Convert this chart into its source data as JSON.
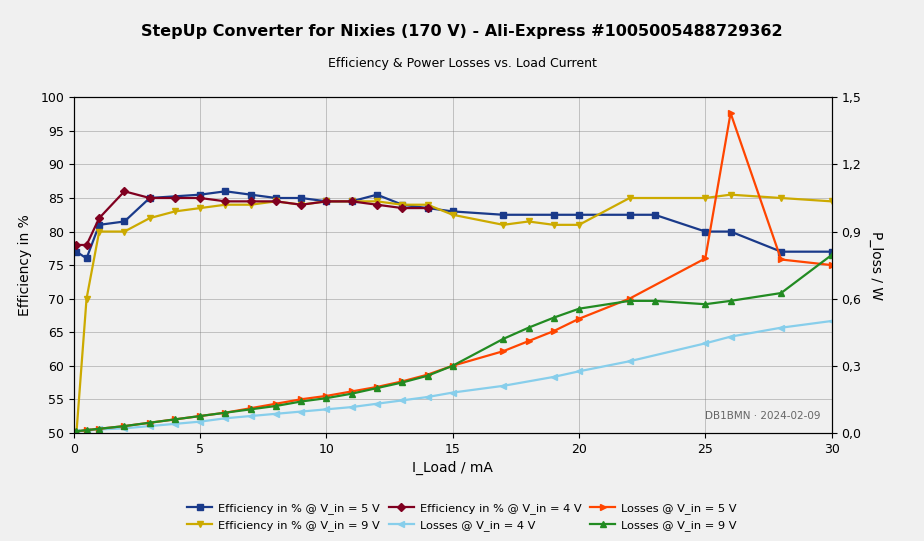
{
  "title": "StepUp Converter for Nixies (170 V) - Ali-Express #1005005488729362",
  "subtitle": "Efficiency & Power Losses vs. Load Current",
  "xlabel": "I_Load / mA",
  "ylabel_left": "Efficiency in %",
  "ylabel_right": "P_loss / W",
  "watermark": "DB1BMN · 2024-02-09",
  "xlim": [
    0,
    30
  ],
  "ylim_left": [
    50,
    100
  ],
  "ylim_right": [
    0.0,
    1.5
  ],
  "xticks": [
    0,
    5,
    10,
    15,
    20,
    25,
    30
  ],
  "yticks_left": [
    50,
    55,
    60,
    65,
    70,
    75,
    80,
    85,
    90,
    95,
    100
  ],
  "yticks_right": [
    0.0,
    0.3,
    0.6,
    0.9,
    1.2,
    1.5
  ],
  "eff_5v_x": [
    0.1,
    0.5,
    1.0,
    2.0,
    3.0,
    5.0,
    6.0,
    7.0,
    8.0,
    9.0,
    10.0,
    11.0,
    12.0,
    13.0,
    14.0,
    15.0,
    17.0,
    19.0,
    20.0,
    22.0,
    23.0,
    25.0,
    26.0,
    28.0,
    30.0
  ],
  "eff_5v_y": [
    77.0,
    76.0,
    81.0,
    81.5,
    85.0,
    85.5,
    86.0,
    85.5,
    85.0,
    85.0,
    84.5,
    84.5,
    85.5,
    84.0,
    83.5,
    83.0,
    82.5,
    82.5,
    82.5,
    82.5,
    82.5,
    80.0,
    80.0,
    77.0,
    77.0
  ],
  "eff_9v_x": [
    0.1,
    0.5,
    1.0,
    2.0,
    3.0,
    4.0,
    5.0,
    6.0,
    7.0,
    8.0,
    9.0,
    10.0,
    11.0,
    12.0,
    13.0,
    14.0,
    15.0,
    17.0,
    18.0,
    19.0,
    20.0,
    22.0,
    25.0,
    26.0,
    28.0,
    30.0
  ],
  "eff_9v_y": [
    50.0,
    70.0,
    80.0,
    80.0,
    82.0,
    83.0,
    83.5,
    84.0,
    84.0,
    84.5,
    84.0,
    84.5,
    84.5,
    84.5,
    84.0,
    84.0,
    82.5,
    81.0,
    81.5,
    81.0,
    81.0,
    85.0,
    85.0,
    85.5,
    85.0,
    84.5
  ],
  "eff_4v_x": [
    0.1,
    0.5,
    1.0,
    2.0,
    3.0,
    4.0,
    5.0,
    6.0,
    7.0,
    8.0,
    9.0,
    10.0,
    11.0,
    12.0,
    13.0,
    14.0
  ],
  "eff_4v_y": [
    78.0,
    78.0,
    82.0,
    86.0,
    85.0,
    85.0,
    85.0,
    84.5,
    84.5,
    84.5,
    84.0,
    84.5,
    84.5,
    84.0,
    83.5,
    83.5
  ],
  "loss_4v_x": [
    0.1,
    0.5,
    1.0,
    2.0,
    3.0,
    4.0,
    5.0,
    6.0,
    7.0,
    8.0,
    9.0,
    10.0,
    11.0,
    12.0,
    13.0,
    14.0,
    15.0,
    17.0,
    19.0,
    20.0,
    22.0,
    25.0,
    26.0,
    28.0,
    30.0
  ],
  "loss_4v_y": [
    0.005,
    0.01,
    0.015,
    0.02,
    0.03,
    0.04,
    0.05,
    0.065,
    0.075,
    0.085,
    0.095,
    0.105,
    0.115,
    0.13,
    0.145,
    0.16,
    0.18,
    0.21,
    0.25,
    0.275,
    0.32,
    0.4,
    0.43,
    0.47,
    0.5
  ],
  "loss_5v_x": [
    0.1,
    0.5,
    1.0,
    2.0,
    3.0,
    4.0,
    5.0,
    6.0,
    7.0,
    8.0,
    9.0,
    10.0,
    11.0,
    12.0,
    13.0,
    14.0,
    15.0,
    17.0,
    18.0,
    19.0,
    20.0,
    22.0,
    25.0,
    26.0,
    28.0,
    30.0
  ],
  "loss_5v_y": [
    0.006,
    0.012,
    0.018,
    0.03,
    0.045,
    0.06,
    0.075,
    0.09,
    0.11,
    0.13,
    0.15,
    0.165,
    0.185,
    0.205,
    0.23,
    0.26,
    0.3,
    0.365,
    0.41,
    0.455,
    0.51,
    0.6,
    0.78,
    1.43,
    0.775,
    0.75
  ],
  "loss_9v_x": [
    0.1,
    0.5,
    1.0,
    2.0,
    3.0,
    4.0,
    5.0,
    6.0,
    7.0,
    8.0,
    9.0,
    10.0,
    11.0,
    12.0,
    13.0,
    14.0,
    15.0,
    17.0,
    18.0,
    19.0,
    20.0,
    22.0,
    23.0,
    25.0,
    26.0,
    28.0,
    30.0
  ],
  "loss_9v_y": [
    0.007,
    0.012,
    0.018,
    0.03,
    0.045,
    0.06,
    0.075,
    0.09,
    0.105,
    0.12,
    0.14,
    0.155,
    0.175,
    0.2,
    0.225,
    0.255,
    0.3,
    0.42,
    0.47,
    0.515,
    0.555,
    0.59,
    0.59,
    0.575,
    0.59,
    0.625,
    0.795
  ],
  "color_eff_5v": "#1a3a8a",
  "color_eff_9v": "#ccaa00",
  "color_eff_4v": "#800020",
  "color_loss_4v": "#87CEEB",
  "color_loss_5v": "#FF4500",
  "color_loss_9v": "#228B22",
  "bg_color": "#f0f0f0"
}
